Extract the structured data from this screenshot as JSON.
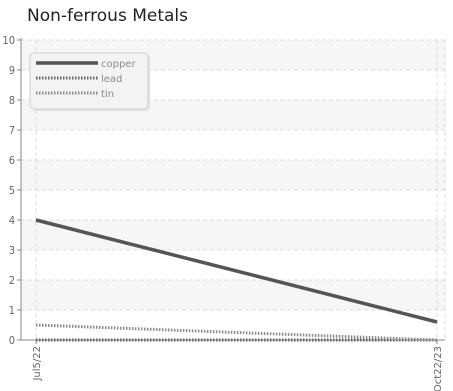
{
  "chart_data": {
    "type": "line",
    "title": "Non-ferrous Metals",
    "xlabel": "",
    "ylabel": "",
    "x": [
      "Jul5/22",
      "Oct22/23"
    ],
    "ylim": [
      0,
      10
    ],
    "yticks": [
      0,
      1,
      2,
      3,
      4,
      5,
      6,
      7,
      8,
      9,
      10
    ],
    "grid": true,
    "legend": "top-left",
    "series": [
      {
        "name": "copper",
        "values": [
          4.0,
          0.6
        ],
        "color": "#555555",
        "style": "solid"
      },
      {
        "name": "lead",
        "values": [
          0.0,
          0.0
        ],
        "color": "#666666",
        "style": "dotted"
      },
      {
        "name": "tin",
        "values": [
          0.5,
          0.0
        ],
        "color": "#8a8a8a",
        "style": "dotted"
      }
    ]
  }
}
